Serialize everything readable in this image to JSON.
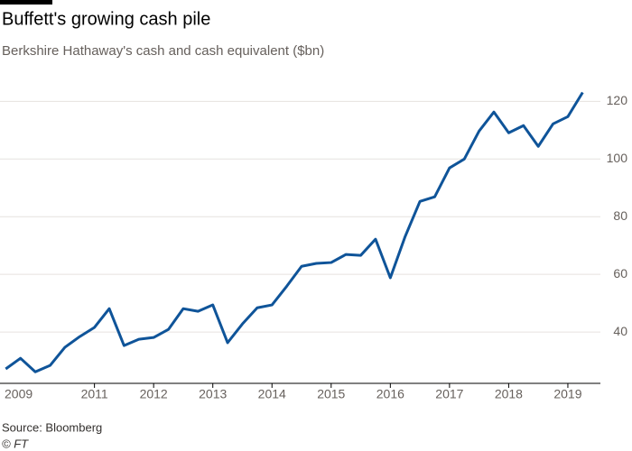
{
  "chart_data": {
    "type": "line",
    "title": "Buffett's growing cash pile",
    "subtitle": "Berkshire Hathaway's cash and cash equivalent ($bn)",
    "source": "Source: Bloomberg",
    "credit": "© FT",
    "x": [
      2009.5,
      2009.75,
      2010,
      2010.25,
      2010.5,
      2010.75,
      2011,
      2011.25,
      2011.5,
      2011.75,
      2012,
      2012.25,
      2012.5,
      2012.75,
      2013,
      2013.25,
      2013.5,
      2013.75,
      2014,
      2014.25,
      2014.5,
      2014.75,
      2015,
      2015.25,
      2015.5,
      2015.75,
      2016,
      2016.25,
      2016.5,
      2016.75,
      2017,
      2017.25,
      2017.5,
      2017.75,
      2018,
      2018.25,
      2018.5,
      2018.75,
      2019,
      2019.25
    ],
    "series": [
      {
        "color": "#0f5499",
        "values": [
          27.2,
          30.9,
          26.2,
          28.4,
          34.7,
          38.4,
          41.6,
          48.1,
          35.3,
          37.5,
          38.1,
          40.9,
          48.1,
          47.2,
          49.4,
          36.3,
          42.8,
          48.4,
          49.4,
          55.9,
          62.8,
          63.8,
          64.1,
          66.9,
          66.6,
          72.2,
          58.8,
          73.1,
          85.3,
          86.9,
          96.9,
          100,
          109.7,
          116.3,
          109.1,
          111.6,
          104.4,
          112.2,
          114.7,
          123.1
        ]
      }
    ],
    "xlim": [
      2009.48,
      2019.55
    ],
    "xticks": [
      2009,
      2011,
      2012,
      2013,
      2014,
      2015,
      2016,
      2017,
      2018,
      2019
    ],
    "ylim": [
      22.2,
      127
    ],
    "yticks": [
      40,
      60,
      80,
      100,
      120
    ],
    "grid": true
  }
}
